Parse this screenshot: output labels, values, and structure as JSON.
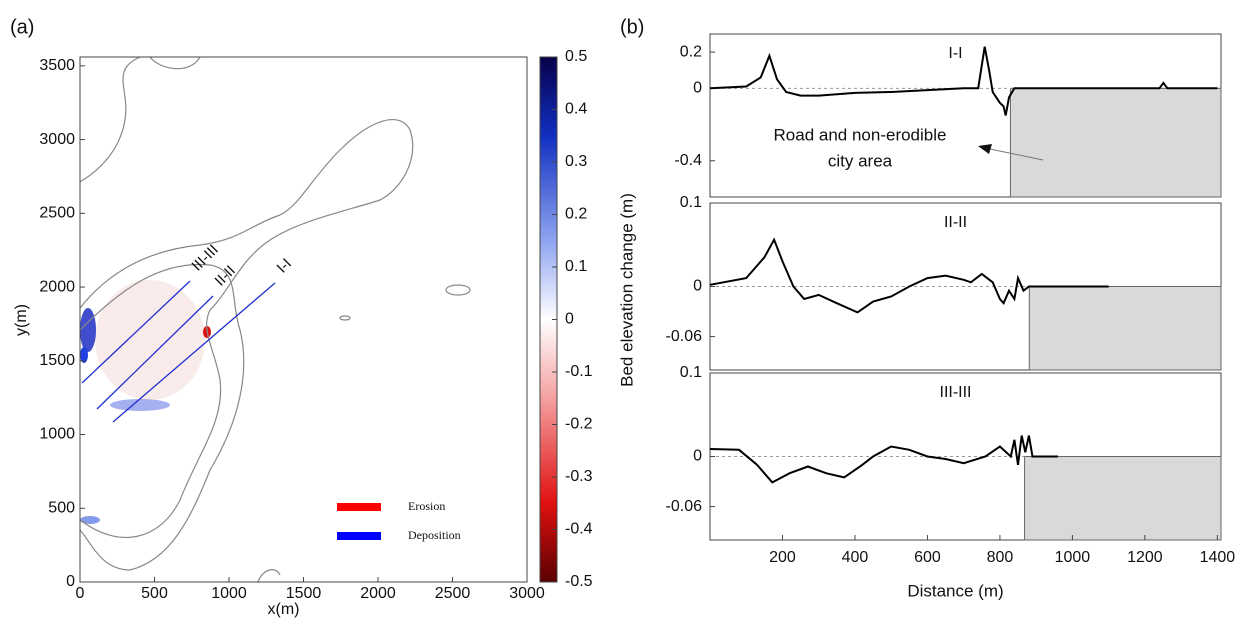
{
  "panel_labels": [
    "(a)",
    "(b)"
  ],
  "chart_data": [
    {
      "type": "heatmap",
      "xlabel": "x(m)",
      "ylabel": "y(m)",
      "xlim": [
        0,
        3000
      ],
      "xticks": [
        0,
        500,
        1000,
        1500,
        2000,
        2500,
        3000
      ],
      "ylim": [
        0,
        3560
      ],
      "yticks": [
        0,
        500,
        1000,
        1500,
        2000,
        2500,
        3000,
        3500
      ],
      "colorbar": {
        "lim": [
          -0.5,
          0.5
        ],
        "ticks": [
          0.5,
          0.4,
          0.3,
          0.2,
          0.1,
          0,
          -0.1,
          -0.2,
          -0.3,
          -0.4,
          -0.5
        ]
      },
      "legend": [
        {
          "name": "Erosion",
          "color": "#ff0000"
        },
        {
          "name": "Deposition",
          "color": "#0000ff"
        }
      ],
      "sections": [
        "III-III",
        "II-II",
        "I-I"
      ]
    },
    {
      "type": "line",
      "title": "I-I",
      "color": "#000000",
      "xlim": [
        0,
        1410
      ],
      "ylim": [
        -0.6,
        0.3
      ],
      "yticks": [
        0.2,
        0,
        -0.4
      ],
      "x": [
        0,
        100,
        140,
        164,
        185,
        210,
        250,
        300,
        400,
        500,
        600,
        700,
        740,
        758,
        770,
        780,
        790,
        800,
        810,
        816,
        825,
        840,
        1200,
        1240,
        1251,
        1262,
        1300,
        1400
      ],
      "values": [
        0,
        0.01,
        0.06,
        0.18,
        0.05,
        -0.02,
        -0.04,
        -0.04,
        -0.025,
        -0.02,
        -0.01,
        0,
        0,
        0.23,
        0.1,
        -0.02,
        -0.05,
        -0.08,
        -0.1,
        -0.15,
        -0.05,
        0,
        0,
        0,
        0.03,
        0,
        0,
        0
      ],
      "shaded_from": 829,
      "annotation": [
        "Road and non-erodible",
        "city area"
      ]
    },
    {
      "type": "line",
      "title": "II-II",
      "color": "#000000",
      "ylabel": "Bed elevation change (m)",
      "xlim": [
        0,
        1410
      ],
      "ylim": [
        -0.1,
        0.1
      ],
      "yticks": [
        0.1,
        0,
        -0.06
      ],
      "x": [
        0,
        100,
        150,
        177,
        200,
        230,
        260,
        300,
        350,
        407,
        450,
        500,
        550,
        600,
        650,
        700,
        720,
        750,
        780,
        800,
        810,
        825,
        840,
        850,
        865,
        880,
        1100
      ],
      "values": [
        0.002,
        0.01,
        0.035,
        0.056,
        0.03,
        0,
        -0.015,
        -0.01,
        -0.02,
        -0.031,
        -0.018,
        -0.012,
        0,
        0.01,
        0.013,
        0.008,
        0.005,
        0.015,
        0.005,
        -0.015,
        -0.02,
        -0.005,
        -0.015,
        0.01,
        -0.005,
        0,
        0
      ],
      "shaded_from": 881
    },
    {
      "type": "line",
      "title": "III-III",
      "color": "#000000",
      "xlabel": "Distance (m)",
      "xlim": [
        0,
        1410
      ],
      "ylim": [
        -0.1,
        0.1
      ],
      "yticks": [
        0.1,
        0,
        -0.06
      ],
      "xticks": [
        200,
        400,
        600,
        800,
        1000,
        1200,
        1400
      ],
      "x": [
        0,
        80,
        130,
        172,
        220,
        270,
        320,
        370,
        420,
        450,
        500,
        550,
        600,
        650,
        700,
        760,
        800,
        830,
        840,
        850,
        860,
        870,
        880,
        890,
        960
      ],
      "values": [
        0.009,
        0.008,
        -0.01,
        -0.031,
        -0.02,
        -0.012,
        -0.02,
        -0.025,
        -0.01,
        0,
        0.012,
        0.008,
        0,
        -0.003,
        -0.008,
        0,
        0.012,
        0,
        0.02,
        -0.01,
        0.025,
        0.005,
        0.025,
        0,
        0
      ],
      "shaded_from": 868
    }
  ]
}
